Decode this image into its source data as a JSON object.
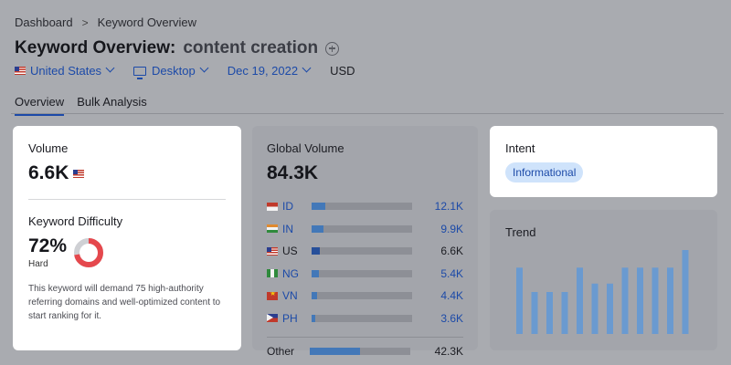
{
  "breadcrumb": {
    "home": "Dashboard",
    "current": "Keyword Overview"
  },
  "title": {
    "main": "Keyword Overview:",
    "keyword": "content creation"
  },
  "filters": {
    "country": "United States",
    "device": "Desktop",
    "date": "Dec 19, 2022",
    "currency": "USD"
  },
  "tabs": [
    {
      "label": "Overview",
      "active": true
    },
    {
      "label": "Bulk Analysis",
      "active": false
    }
  ],
  "volume": {
    "label": "Volume",
    "value": "6.6K"
  },
  "difficulty": {
    "label": "Keyword Difficulty",
    "value": "72%",
    "percent": 72,
    "level": "Hard",
    "description": "This keyword will demand 75 high-authority referring domains and well-optimized content to start ranking for it.",
    "color": "#e5484d"
  },
  "global_volume": {
    "label": "Global Volume",
    "value": "84.3K",
    "rows": [
      {
        "code": "ID",
        "value": "12.1K",
        "fraction": 0.14
      },
      {
        "code": "IN",
        "value": "9.9K",
        "fraction": 0.12
      },
      {
        "code": "US",
        "value": "6.6K",
        "fraction": 0.08
      },
      {
        "code": "NG",
        "value": "5.4K",
        "fraction": 0.07
      },
      {
        "code": "VN",
        "value": "4.4K",
        "fraction": 0.05
      },
      {
        "code": "PH",
        "value": "3.6K",
        "fraction": 0.04
      }
    ],
    "other": {
      "label": "Other",
      "value": "42.3K",
      "fraction": 0.5
    }
  },
  "intent": {
    "label": "Intent",
    "badge": "Informational"
  },
  "trend": {
    "label": "Trend",
    "values": [
      0.79,
      0.5,
      0.5,
      0.5,
      0.79,
      0.6,
      0.6,
      0.79,
      0.79,
      0.79,
      0.79,
      1.0
    ],
    "color": "#6a9ad0"
  }
}
